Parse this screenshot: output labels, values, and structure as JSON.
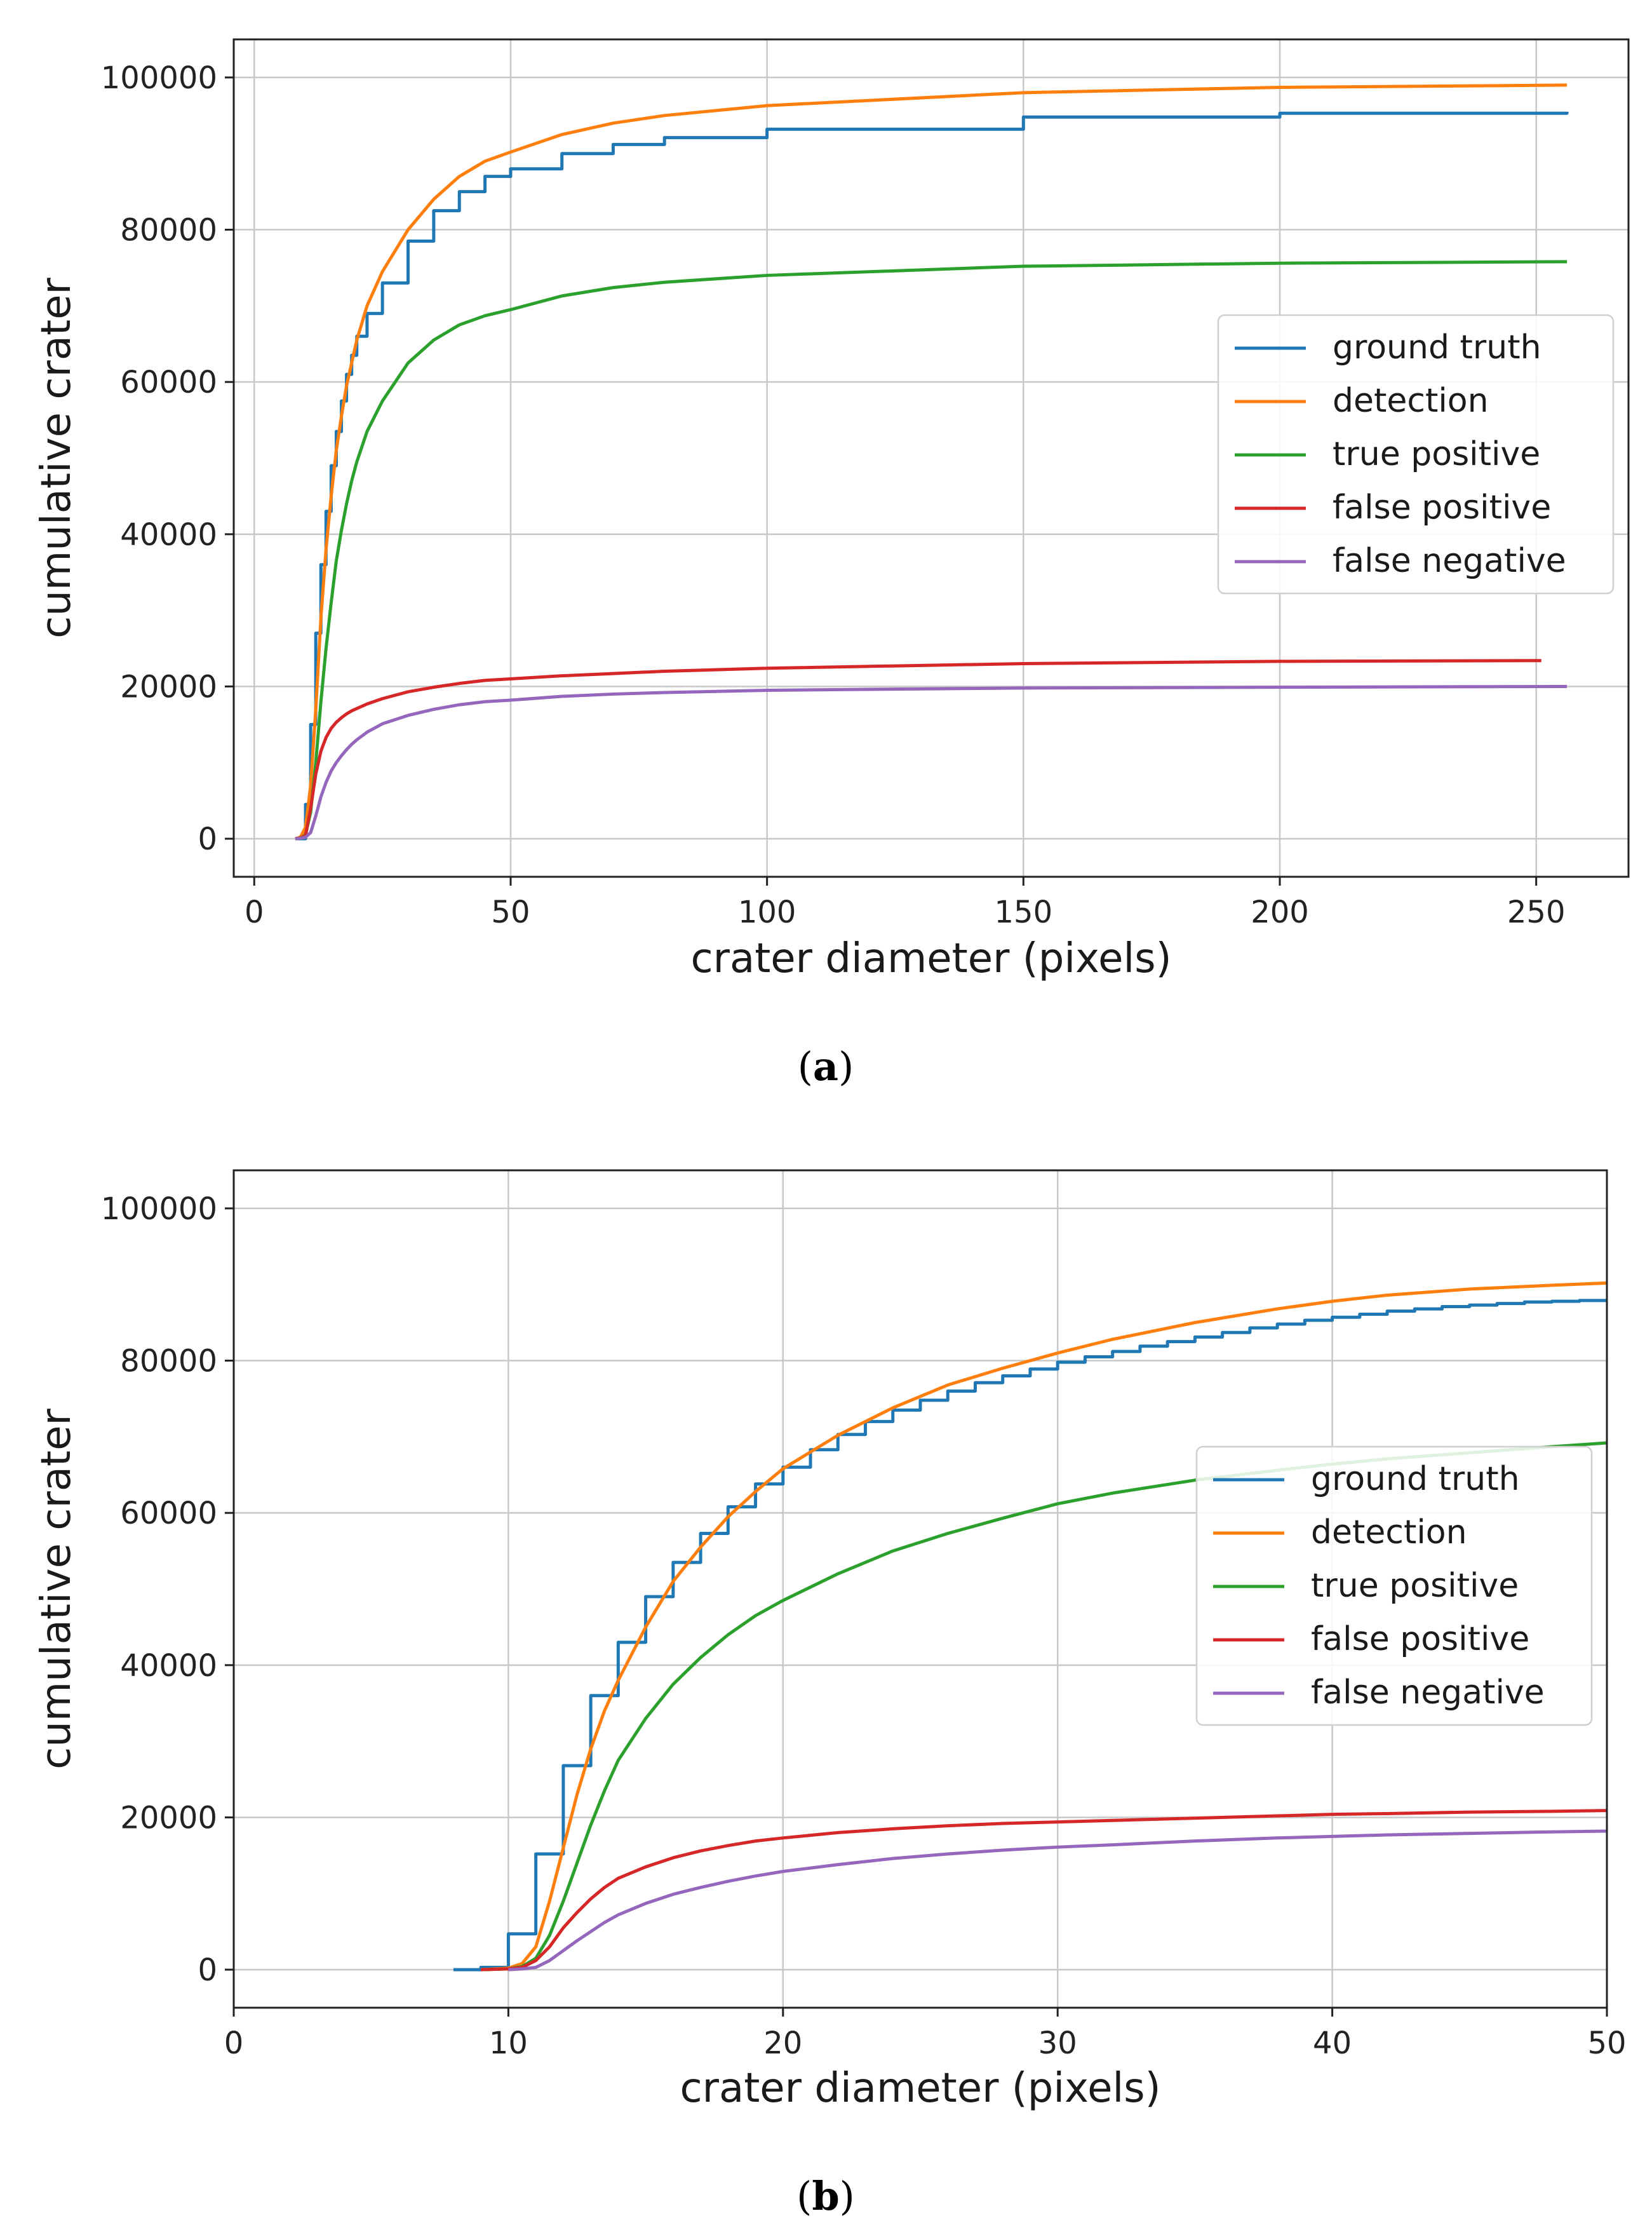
{
  "chart_data": [
    {
      "type": "line",
      "caption_letter": "a",
      "xlabel": "crater diameter (pixels)",
      "ylabel": "cumulative crater",
      "xlim": [
        -4,
        268
      ],
      "ylim": [
        -5000,
        105000
      ],
      "xticks": [
        0,
        50,
        100,
        150,
        200,
        250
      ],
      "yticks": [
        0,
        20000,
        40000,
        60000,
        80000,
        100000
      ],
      "grid": true,
      "legend_position": "center-right",
      "series": [
        {
          "name": "ground truth",
          "color": "#1f77b4",
          "style": "step",
          "x": [
            8,
            10,
            11,
            12,
            13,
            14,
            15,
            16,
            17,
            18,
            19,
            20,
            22,
            25,
            30,
            35,
            40,
            45,
            50,
            60,
            70,
            80,
            100,
            150,
            200,
            256
          ],
          "y": [
            0,
            4500,
            15000,
            27000,
            36000,
            43000,
            49000,
            53500,
            57500,
            61000,
            63500,
            66000,
            69000,
            73000,
            78500,
            82500,
            85000,
            87000,
            88000,
            90000,
            91200,
            92100,
            93200,
            94800,
            95300,
            95500
          ]
        },
        {
          "name": "detection",
          "color": "#ff7f0e",
          "style": "line",
          "x": [
            8,
            9,
            10,
            11,
            12,
            13,
            14,
            15,
            16,
            17,
            18,
            19,
            20,
            22,
            25,
            30,
            35,
            40,
            45,
            50,
            60,
            70,
            80,
            100,
            150,
            200,
            256
          ],
          "y": [
            0,
            200,
            1500,
            7000,
            17000,
            29000,
            38000,
            45000,
            51000,
            55500,
            59500,
            62500,
            65500,
            70000,
            74500,
            80000,
            84000,
            87000,
            89000,
            90200,
            92500,
            94000,
            95000,
            96300,
            98000,
            98700,
            99000
          ]
        },
        {
          "name": "true positive",
          "color": "#2ca02c",
          "style": "line",
          "x": [
            8,
            9,
            10,
            11,
            12,
            13,
            14,
            15,
            16,
            17,
            18,
            19,
            20,
            22,
            25,
            30,
            35,
            40,
            45,
            50,
            60,
            70,
            80,
            100,
            150,
            200,
            256
          ],
          "y": [
            0,
            100,
            500,
            3500,
            10000,
            18000,
            25000,
            31000,
            36500,
            40500,
            44000,
            47000,
            49500,
            53500,
            57500,
            62500,
            65500,
            67500,
            68700,
            69500,
            71300,
            72400,
            73100,
            74000,
            75200,
            75600,
            75800
          ]
        },
        {
          "name": "false positive",
          "color": "#d62728",
          "style": "line",
          "x": [
            8,
            9,
            10,
            11,
            12,
            13,
            14,
            15,
            16,
            17,
            18,
            19,
            20,
            22,
            25,
            30,
            35,
            40,
            45,
            50,
            60,
            70,
            80,
            100,
            150,
            200,
            251
          ],
          "y": [
            0,
            100,
            400,
            4000,
            8500,
            11500,
            13300,
            14500,
            15300,
            15900,
            16400,
            16800,
            17100,
            17700,
            18400,
            19300,
            19900,
            20400,
            20800,
            21000,
            21400,
            21700,
            22000,
            22400,
            23000,
            23300,
            23400
          ]
        },
        {
          "name": "false negative",
          "color": "#9467bd",
          "style": "line",
          "x": [
            8,
            9,
            10,
            11,
            12,
            13,
            14,
            15,
            16,
            17,
            18,
            19,
            20,
            22,
            25,
            30,
            35,
            40,
            45,
            50,
            60,
            70,
            80,
            100,
            150,
            200,
            256
          ],
          "y": [
            0,
            50,
            200,
            800,
            3000,
            5500,
            7400,
            8900,
            10000,
            10900,
            11700,
            12400,
            13000,
            14000,
            15100,
            16200,
            17000,
            17600,
            18000,
            18200,
            18700,
            19000,
            19200,
            19500,
            19800,
            19900,
            20000
          ]
        }
      ]
    },
    {
      "type": "line",
      "caption_letter": "b",
      "xlabel": "crater diameter (pixels)",
      "ylabel": "cumulative crater",
      "xlim": [
        0,
        50
      ],
      "ylim": [
        -5000,
        105000
      ],
      "xticks": [
        0,
        10,
        20,
        30,
        40,
        50
      ],
      "yticks": [
        0,
        20000,
        40000,
        60000,
        80000,
        100000
      ],
      "grid": true,
      "legend_position": "center-right",
      "series": [
        {
          "name": "ground truth",
          "color": "#1f77b4",
          "style": "step",
          "x": [
            8,
            9,
            10,
            11,
            12,
            13,
            14,
            15,
            16,
            17,
            18,
            19,
            20,
            21,
            22,
            23,
            24,
            25,
            26,
            27,
            28,
            29,
            30,
            31,
            32,
            33,
            34,
            35,
            36,
            37,
            38,
            39,
            40,
            41,
            42,
            43,
            44,
            45,
            46,
            47,
            48,
            49,
            50
          ],
          "y": [
            0,
            300,
            4700,
            15200,
            26800,
            36000,
            43000,
            49000,
            53500,
            57300,
            60800,
            63800,
            66000,
            68300,
            70300,
            72000,
            73500,
            74800,
            76000,
            77100,
            78000,
            78900,
            79800,
            80500,
            81200,
            81900,
            82500,
            83100,
            83700,
            84300,
            84800,
            85300,
            85700,
            86100,
            86500,
            86800,
            87100,
            87300,
            87500,
            87700,
            87800,
            87900,
            88000
          ]
        },
        {
          "name": "detection",
          "color": "#ff7f0e",
          "style": "line",
          "x": [
            9,
            10,
            10.5,
            11,
            11.5,
            12,
            12.5,
            13,
            13.5,
            14,
            15,
            16,
            17,
            18,
            19,
            20,
            22,
            24,
            26,
            28,
            30,
            32,
            35,
            38,
            40,
            42,
            45,
            48,
            50
          ],
          "y": [
            0,
            200,
            800,
            3000,
            9000,
            16000,
            23000,
            29000,
            34000,
            38000,
            45000,
            51000,
            55500,
            59500,
            62800,
            65800,
            70200,
            73800,
            76800,
            79000,
            81000,
            82800,
            85000,
            86800,
            87800,
            88600,
            89400,
            89900,
            90200
          ]
        },
        {
          "name": "true positive",
          "color": "#2ca02c",
          "style": "line",
          "x": [
            9,
            10,
            10.5,
            11,
            11.5,
            12,
            12.5,
            13,
            13.5,
            14,
            15,
            16,
            17,
            18,
            19,
            20,
            22,
            24,
            26,
            28,
            30,
            32,
            35,
            38,
            40,
            42,
            45,
            48,
            50
          ],
          "y": [
            0,
            100,
            400,
            1500,
            4500,
            9000,
            14000,
            19000,
            23500,
            27500,
            33000,
            37500,
            41000,
            44000,
            46500,
            48500,
            52000,
            55000,
            57300,
            59300,
            61200,
            62600,
            64300,
            65600,
            66400,
            67100,
            67900,
            68700,
            69200
          ]
        },
        {
          "name": "false positive",
          "color": "#d62728",
          "style": "line",
          "x": [
            9,
            10,
            10.5,
            11,
            11.5,
            12,
            12.5,
            13,
            13.5,
            14,
            15,
            16,
            17,
            18,
            19,
            20,
            22,
            24,
            26,
            28,
            30,
            32,
            35,
            38,
            40,
            42,
            45,
            48,
            50
          ],
          "y": [
            0,
            100,
            300,
            1200,
            3000,
            5500,
            7500,
            9300,
            10800,
            12000,
            13500,
            14700,
            15600,
            16300,
            16900,
            17300,
            18000,
            18500,
            18900,
            19200,
            19400,
            19600,
            19900,
            20200,
            20400,
            20500,
            20700,
            20800,
            20900
          ]
        },
        {
          "name": "false negative",
          "color": "#9467bd",
          "style": "line",
          "x": [
            10,
            10.5,
            11,
            11.5,
            12,
            12.5,
            13,
            13.5,
            14,
            15,
            16,
            17,
            18,
            19,
            20,
            22,
            24,
            26,
            28,
            30,
            32,
            35,
            38,
            40,
            42,
            45,
            48,
            50
          ],
          "y": [
            0,
            100,
            300,
            1200,
            2500,
            3800,
            5000,
            6200,
            7200,
            8700,
            9900,
            10800,
            11600,
            12300,
            12900,
            13800,
            14600,
            15200,
            15700,
            16100,
            16400,
            16900,
            17300,
            17500,
            17700,
            17900,
            18100,
            18200
          ]
        }
      ]
    }
  ]
}
